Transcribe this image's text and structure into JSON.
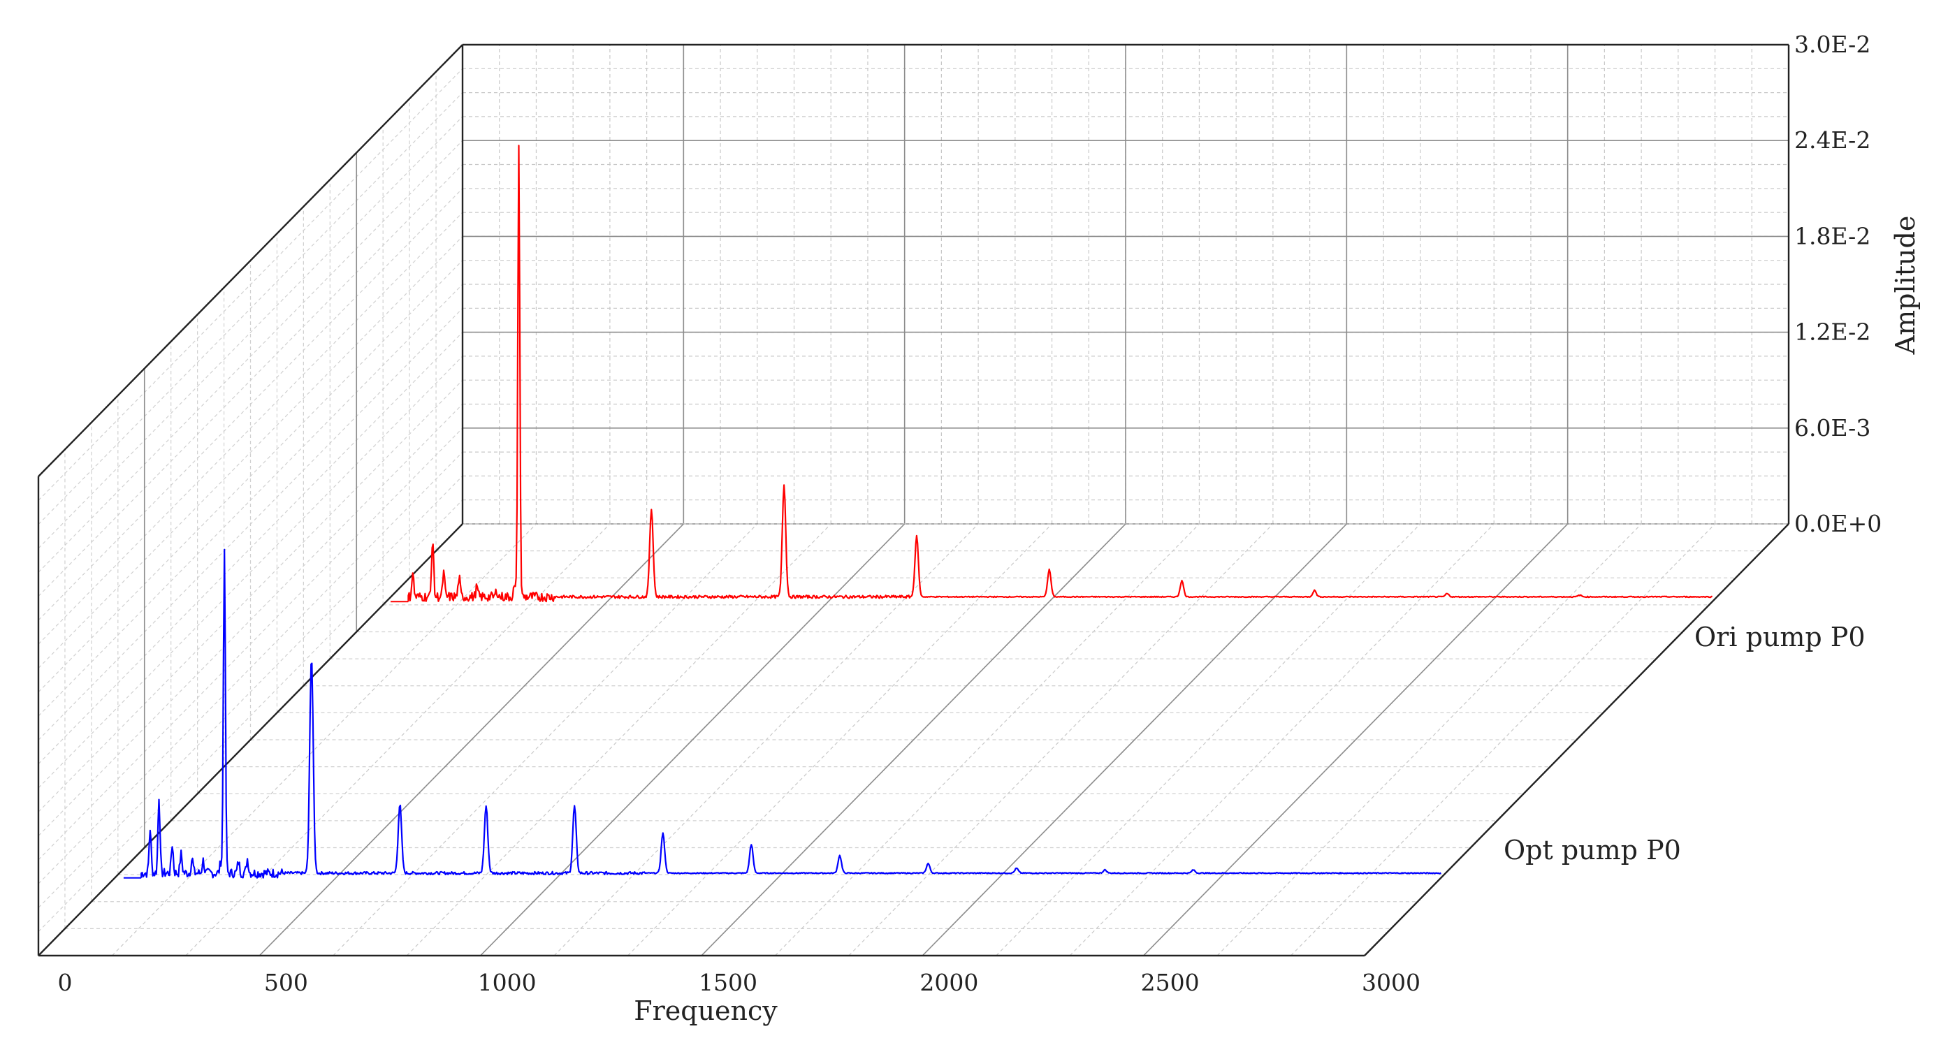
{
  "chart_data": {
    "type": "line",
    "subtype": "3d-waterfall",
    "xlabel": "Frequency",
    "ylabel": "Amplitude",
    "xlim": [
      0,
      3000
    ],
    "ylim": [
      0,
      0.03
    ],
    "x_ticks": [
      "0",
      "500",
      "1000",
      "1500",
      "2000",
      "2500",
      "3000"
    ],
    "y_ticks": [
      "0.0E+0",
      "6.0E-3",
      "1.2E-2",
      "1.8E-2",
      "2.4E-2",
      "3.0E-2"
    ],
    "grid": true,
    "series": [
      {
        "name": "Opt pump P0",
        "color": "#0000ff",
        "baseline": 0.0003,
        "x_start": 60,
        "x_end": 3000,
        "peaks": [
          {
            "x": 80,
            "y": 0.0028
          },
          {
            "x": 100,
            "y": 0.0048
          },
          {
            "x": 130,
            "y": 0.0018
          },
          {
            "x": 150,
            "y": 0.0012
          },
          {
            "x": 175,
            "y": 0.0009
          },
          {
            "x": 200,
            "y": 0.0008
          },
          {
            "x": 240,
            "y": 0.0007
          },
          {
            "x": 248,
            "y": 0.0205
          },
          {
            "x": 280,
            "y": 0.0007
          },
          {
            "x": 300,
            "y": 0.0009
          },
          {
            "x": 445,
            "y": 0.0136
          },
          {
            "x": 645,
            "y": 0.0043
          },
          {
            "x": 840,
            "y": 0.0042
          },
          {
            "x": 1040,
            "y": 0.0042
          },
          {
            "x": 1240,
            "y": 0.0025
          },
          {
            "x": 1440,
            "y": 0.0018
          },
          {
            "x": 1640,
            "y": 0.0011
          },
          {
            "x": 1840,
            "y": 0.0006
          },
          {
            "x": 2040,
            "y": 0.0003
          },
          {
            "x": 2240,
            "y": 0.0002
          },
          {
            "x": 2440,
            "y": 0.0002
          }
        ]
      },
      {
        "name": "Ori pump P0",
        "color": "#ff0000",
        "baseline": 0.0003,
        "x_start": 50,
        "x_end": 3000,
        "peaks": [
          {
            "x": 60,
            "y": 0.0015
          },
          {
            "x": 105,
            "y": 0.0037
          },
          {
            "x": 130,
            "y": 0.0015
          },
          {
            "x": 165,
            "y": 0.0012
          },
          {
            "x": 205,
            "y": 0.0006
          },
          {
            "x": 250,
            "y": 0.0004
          },
          {
            "x": 290,
            "y": 0.0006
          },
          {
            "x": 300,
            "y": 0.028
          },
          {
            "x": 600,
            "y": 0.0055
          },
          {
            "x": 900,
            "y": 0.007
          },
          {
            "x": 1200,
            "y": 0.0038
          },
          {
            "x": 1500,
            "y": 0.0017
          },
          {
            "x": 1800,
            "y": 0.001
          },
          {
            "x": 2100,
            "y": 0.0004
          },
          {
            "x": 2400,
            "y": 0.0002
          },
          {
            "x": 2700,
            "y": 0.0001
          }
        ]
      }
    ]
  }
}
